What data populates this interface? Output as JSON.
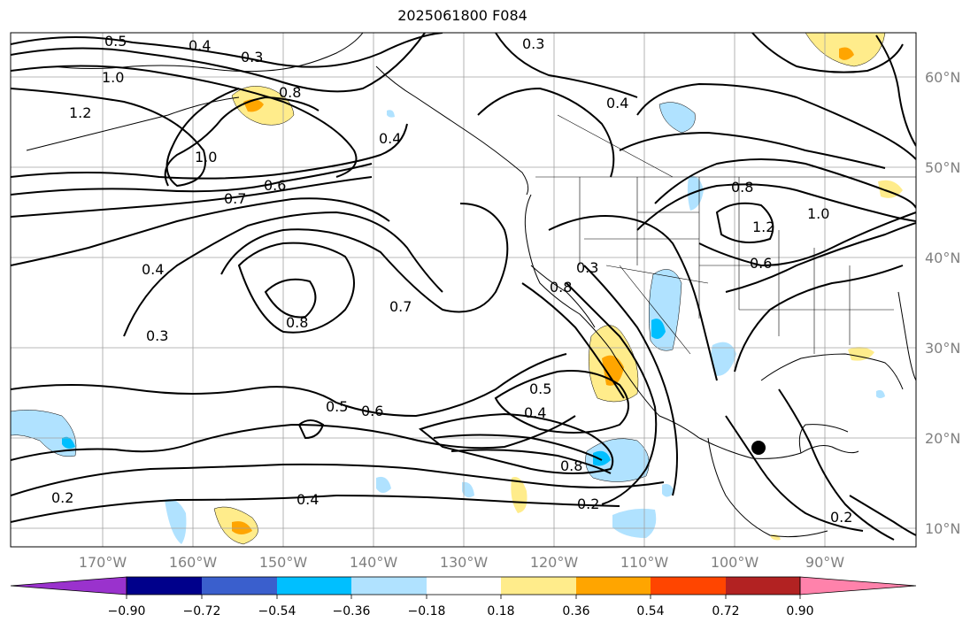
{
  "title": "2025061800 F084",
  "lat_labels": [
    "60°N",
    "50°N",
    "40°N",
    "30°N",
    "20°N",
    "10°N"
  ],
  "lon_labels": [
    "170°W",
    "160°W",
    "150°W",
    "140°W",
    "130°W",
    "120°W",
    "110°W",
    "100°W",
    "90°W"
  ],
  "colorbar": {
    "ticks": [
      "−0.90",
      "−0.72",
      "−0.54",
      "−0.36",
      "−0.18",
      "0.18",
      "0.36",
      "0.54",
      "0.72",
      "0.90"
    ],
    "colors": [
      "#9a32cd",
      "#00008b",
      "#3a5fcd",
      "#00bfff",
      "#b0e2ff",
      "#ffffff",
      "#ffec8b",
      "#ffa500",
      "#ff4500",
      "#b22222",
      "#ff82ab"
    ]
  },
  "contour_labels": [
    "0.5",
    "0.4",
    "0.3",
    "1.0",
    "1.2",
    "0.8",
    "1.0",
    "0.7",
    "0.6",
    "0.4",
    "0.3",
    "0.8",
    "0.7",
    "0.5",
    "0.6",
    "0.4",
    "0.5",
    "0.8",
    "0.2",
    "0.4",
    "0.2",
    "0.3",
    "0.8",
    "0.4",
    "0.3",
    "0.4",
    "0.8",
    "1.2",
    "0.6",
    "1.0",
    "0.2"
  ],
  "marker": "black-dot"
}
